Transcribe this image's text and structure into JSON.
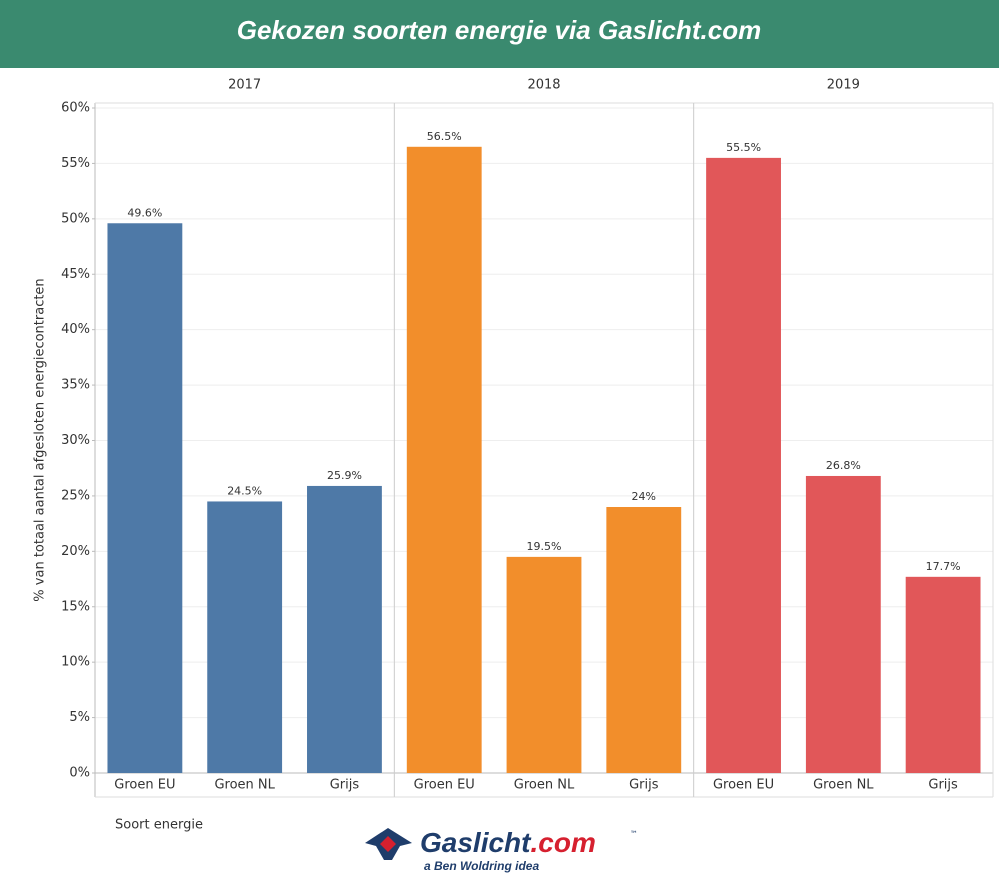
{
  "chart_data": {
    "type": "bar",
    "title": "Gekozen soorten energie via Gaslicht.com",
    "y_label": "% van totaal aantal afgesloten energiecontracten",
    "x_label": "Soort energie",
    "ylim": [
      0,
      60
    ],
    "yticks": [
      {
        "value": 0,
        "label": "0%"
      },
      {
        "value": 5,
        "label": "5%"
      },
      {
        "value": 10,
        "label": "10%"
      },
      {
        "value": 15,
        "label": "15%"
      },
      {
        "value": 20,
        "label": "20%"
      },
      {
        "value": 25,
        "label": "25%"
      },
      {
        "value": 30,
        "label": "30%"
      },
      {
        "value": 35,
        "label": "35%"
      },
      {
        "value": 40,
        "label": "40%"
      },
      {
        "value": 45,
        "label": "45%"
      },
      {
        "value": 50,
        "label": "50%"
      },
      {
        "value": 55,
        "label": "55%"
      },
      {
        "value": 60,
        "label": "60%"
      }
    ],
    "grid": true,
    "panels": [
      {
        "name": "2017",
        "color": "#4e79a7",
        "categories": [
          "Groen EU",
          "Groen NL",
          "Grijs"
        ],
        "values": [
          49.6,
          24.5,
          25.9
        ],
        "value_labels": [
          "49.6%",
          "24.5%",
          "25.9%"
        ]
      },
      {
        "name": "2018",
        "color": "#f28e2b",
        "categories": [
          "Groen EU",
          "Groen NL",
          "Grijs"
        ],
        "values": [
          56.5,
          19.5,
          24
        ],
        "value_labels": [
          "56.5%",
          "19.5%",
          "24%"
        ]
      },
      {
        "name": "2019",
        "color": "#e15759",
        "categories": [
          "Groen EU",
          "Groen NL",
          "Grijs"
        ],
        "values": [
          55.5,
          26.8,
          17.7
        ],
        "value_labels": [
          "55.5%",
          "26.8%",
          "17.7%"
        ]
      }
    ]
  },
  "logo": {
    "name": "Gaslicht",
    "domain": ".com",
    "tm": "™",
    "tagline": "a Ben Woldring idea"
  }
}
